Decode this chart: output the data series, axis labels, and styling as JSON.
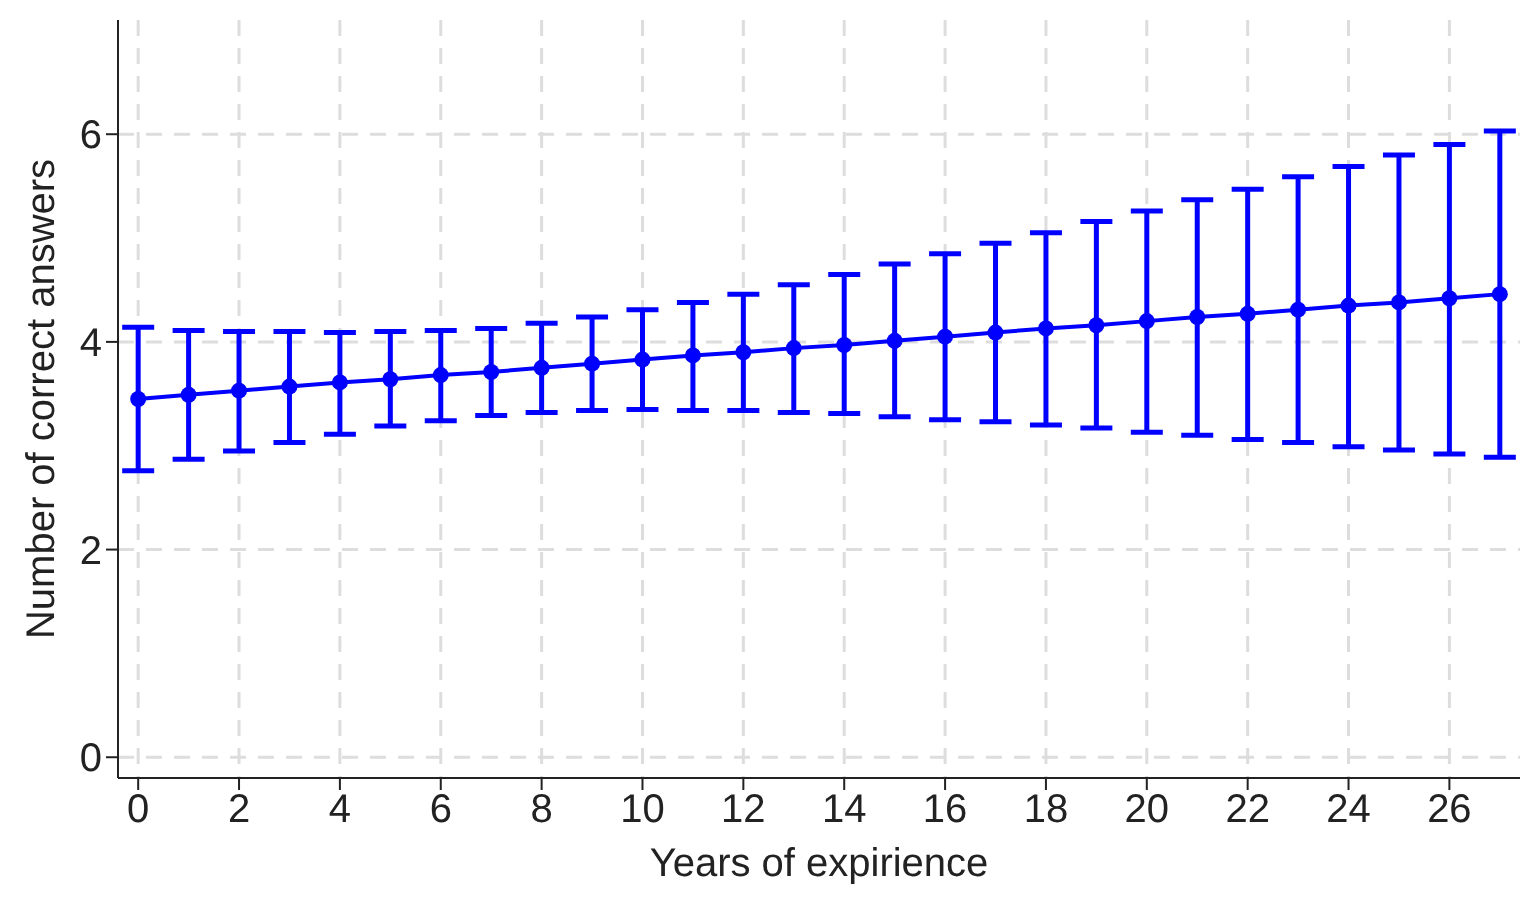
{
  "chart_data": {
    "type": "line",
    "xlabel": "Years of expirience",
    "ylabel": "Number of correct answers",
    "x": [
      0,
      1,
      2,
      3,
      4,
      5,
      6,
      7,
      8,
      9,
      10,
      11,
      12,
      13,
      14,
      15,
      16,
      17,
      18,
      19,
      20,
      21,
      22,
      23,
      24,
      25,
      26,
      27
    ],
    "series": [
      {
        "color": "#0000ff",
        "values": [
          3.45,
          3.49,
          3.53,
          3.57,
          3.61,
          3.64,
          3.68,
          3.71,
          3.75,
          3.79,
          3.83,
          3.87,
          3.9,
          3.94,
          3.97,
          4.01,
          4.05,
          4.09,
          4.13,
          4.16,
          4.2,
          4.24,
          4.27,
          4.31,
          4.35,
          4.38,
          4.42,
          4.46
        ],
        "errors": [
          [
            2.76,
            4.14
          ],
          [
            2.87,
            4.11
          ],
          [
            2.95,
            4.1
          ],
          [
            3.03,
            4.1
          ],
          [
            3.11,
            4.09
          ],
          [
            3.19,
            4.1
          ],
          [
            3.24,
            4.11
          ],
          [
            3.29,
            4.13
          ],
          [
            3.32,
            4.18
          ],
          [
            3.34,
            4.24
          ],
          [
            3.35,
            4.31
          ],
          [
            3.34,
            4.38
          ],
          [
            3.34,
            4.46
          ],
          [
            3.32,
            4.55
          ],
          [
            3.31,
            4.65
          ],
          [
            3.28,
            4.75
          ],
          [
            3.25,
            4.85
          ],
          [
            3.23,
            4.95
          ],
          [
            3.2,
            5.05
          ],
          [
            3.17,
            5.16
          ],
          [
            3.13,
            5.26
          ],
          [
            3.1,
            5.37
          ],
          [
            3.06,
            5.47
          ],
          [
            3.03,
            5.59
          ],
          [
            2.99,
            5.69
          ],
          [
            2.96,
            5.8
          ],
          [
            2.92,
            5.9
          ],
          [
            2.89,
            6.03
          ]
        ]
      }
    ],
    "xlim": [
      -0.4,
      27.4
    ],
    "xticks": [
      0,
      2,
      4,
      6,
      8,
      10,
      12,
      14,
      16,
      18,
      20,
      22,
      24,
      26
    ],
    "ylim": [
      -0.2,
      7.1
    ],
    "yticks": [
      0,
      2,
      4,
      6
    ],
    "grid": true,
    "marker": "circle",
    "line_style": "solid"
  }
}
